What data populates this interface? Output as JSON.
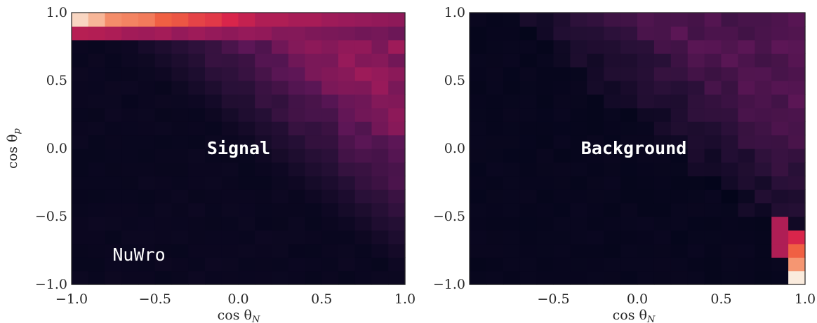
{
  "chart_data": [
    {
      "type": "heatmap",
      "name": "signal",
      "x_range": [
        -1.0,
        1.0
      ],
      "y_range": [
        -1.0,
        1.0
      ],
      "xticks": [
        "−1.0",
        "−0.5",
        "0.0",
        "0.5",
        "1.0"
      ],
      "yticks": [
        "−1.0",
        "−0.5",
        "0.0",
        "0.5",
        "1.0"
      ],
      "xlabel_main": "cos θ",
      "xlabel_sub": "N",
      "ylabel_main": "cos θ",
      "ylabel_sub": "p",
      "annotations": [
        "Signal",
        "NuWro"
      ],
      "bins": 20,
      "colormap": "rocket",
      "grid": false
    },
    {
      "type": "heatmap",
      "name": "background",
      "x_range": [
        -1.0,
        1.0
      ],
      "y_range": [
        -1.0,
        1.0
      ],
      "xticks": [
        "−0.5",
        "0.0",
        "0.5",
        "1.0"
      ],
      "yticks": [
        "−1.0",
        "−0.5",
        "0.0",
        "0.5",
        "1.0"
      ],
      "xlabel_main": "cos θ",
      "xlabel_sub": "N",
      "annotations": [
        "Background"
      ],
      "bins": 20,
      "colormap": "rocket",
      "grid": false
    }
  ]
}
